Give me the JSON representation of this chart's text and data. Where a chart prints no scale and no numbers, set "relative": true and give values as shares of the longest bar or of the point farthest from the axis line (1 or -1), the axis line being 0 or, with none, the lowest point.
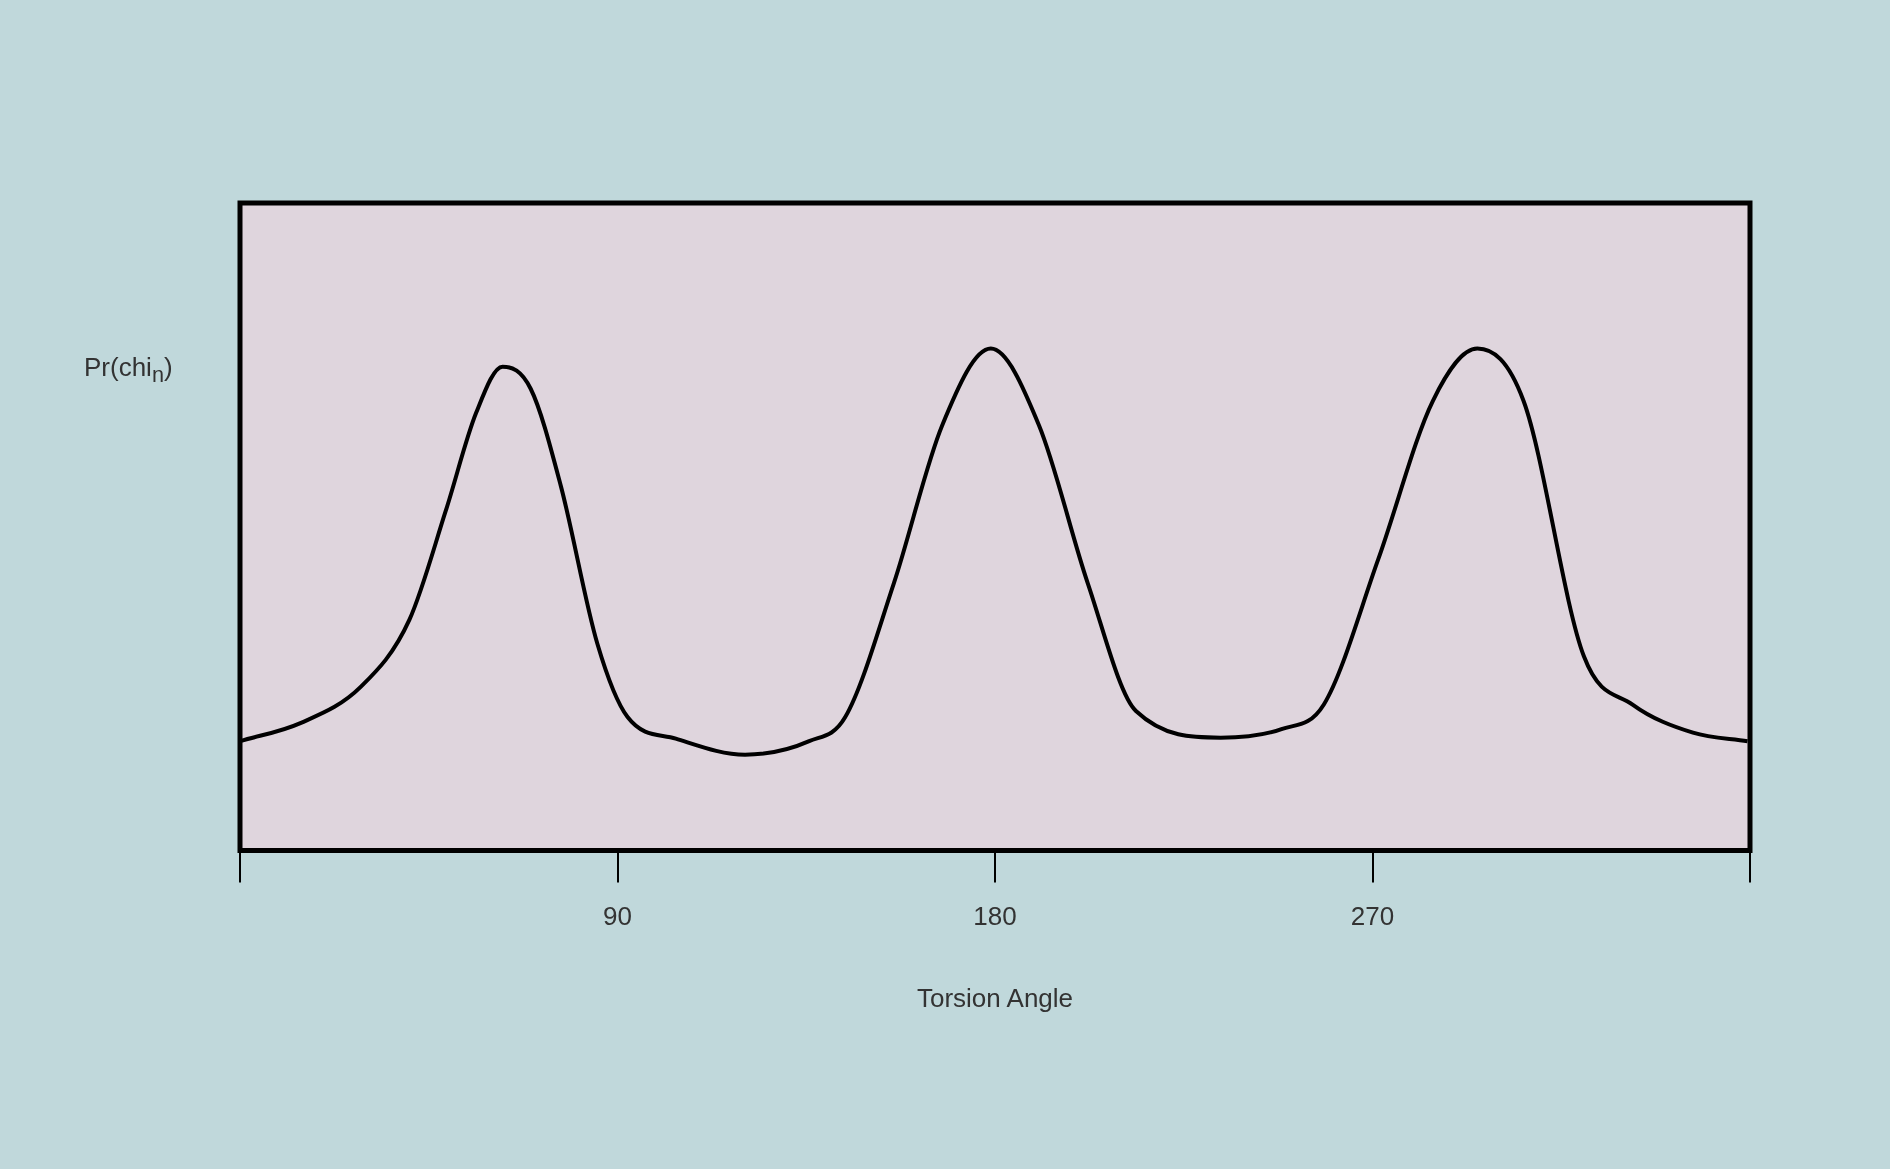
{
  "chart_data": {
    "type": "line",
    "xlabel": "Torsion Angle",
    "ylabel": "Pr(chi$_{n}$)",
    "relative": true,
    "xlim": [
      0,
      360
    ],
    "xticks": [
      {
        "value": 0,
        "label": null
      },
      90,
      180,
      270,
      {
        "value": 360,
        "label": null
      }
    ],
    "marker": "none",
    "line_style": "solid",
    "series": [
      {
        "color": "#000000",
        "x": [
          0,
          14.4,
          28.9,
          40.4,
          49.1,
          56.3,
          62.6,
          69.3,
          76.5,
          85.2,
          92.4,
          103.9,
          120.4,
          135.7,
          144.3,
          155.9,
          167.4,
          179,
          190.5,
          202.1,
          213.6,
          233.8,
          248.3,
          258.4,
          271.4,
          284.4,
          295,
          306,
          320.4,
          332,
          346.4,
          359.4
        ],
        "values": [
          0.218,
          0.254,
          0.327,
          0.46,
          0.678,
          0.872,
          0.964,
          0.92,
          0.726,
          0.412,
          0.266,
          0.223,
          0.191,
          0.218,
          0.266,
          0.533,
          0.847,
          1,
          0.847,
          0.533,
          0.278,
          0.225,
          0.242,
          0.291,
          0.581,
          0.896,
          1,
          0.896,
          0.387,
          0.291,
          0.235,
          0.218
        ]
      }
    ]
  }
}
